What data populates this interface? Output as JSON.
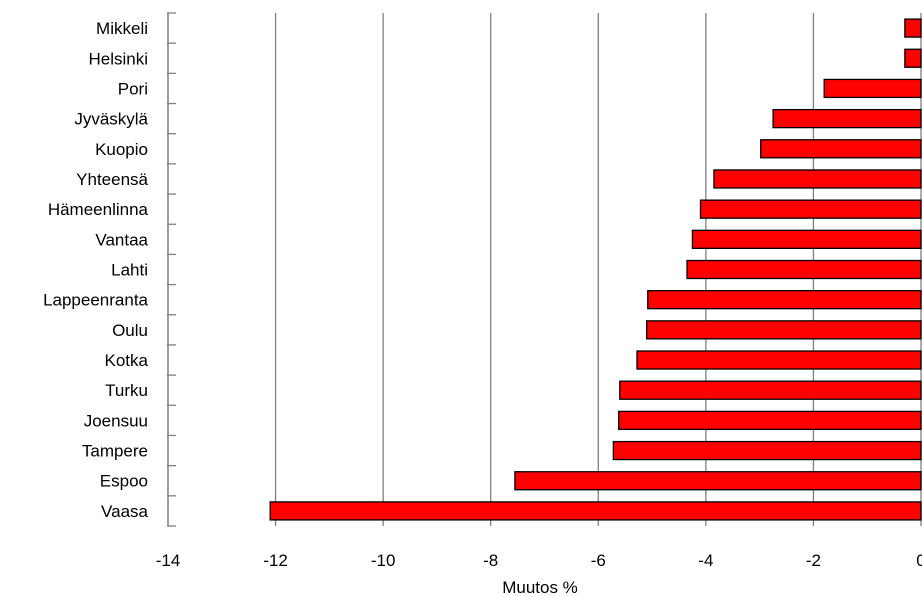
{
  "chart_data": {
    "type": "bar",
    "orientation": "horizontal",
    "categories": [
      "Mikkeli",
      "Helsinki",
      "Pori",
      "Jyväskylä",
      "Kuopio",
      "Yhteensä",
      "Hämeenlinna",
      "Vantaa",
      "Lahti",
      "Lappeenranta",
      "Oulu",
      "Kotka",
      "Turku",
      "Joensuu",
      "Tampere",
      "Espoo",
      "Vaasa"
    ],
    "values": [
      -0.3,
      -0.3,
      -1.8,
      -2.75,
      -2.98,
      -3.85,
      -4.1,
      -4.25,
      -4.35,
      -5.08,
      -5.1,
      -5.28,
      -5.6,
      -5.62,
      -5.72,
      -7.55,
      -12.1
    ],
    "xlabel": "Muutos %",
    "xlim": [
      -14,
      0
    ],
    "xticks": [
      "-14",
      "-12",
      "-10",
      "-8",
      "-6",
      "-4",
      "-2",
      "0"
    ],
    "grid": "vertical",
    "legend": "none",
    "colors": {
      "bar_fill": "#ff0000",
      "bar_stroke": "#000000",
      "grid": "#808080"
    }
  }
}
